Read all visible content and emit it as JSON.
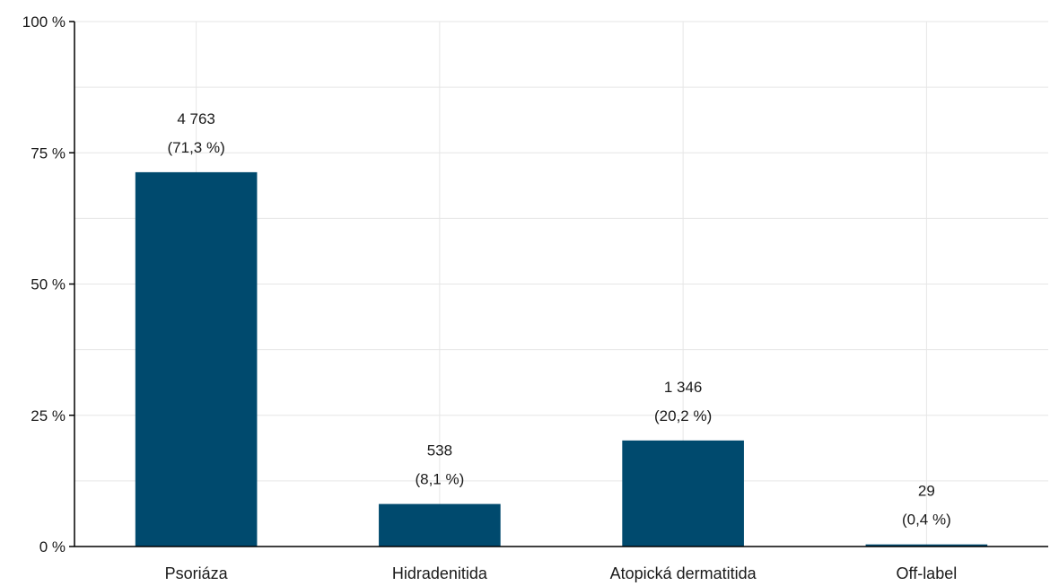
{
  "chart_data": {
    "type": "bar",
    "categories": [
      "Psoriáza",
      "Hidradenitida",
      "Atopická dermatitida",
      "Off-label"
    ],
    "values": [
      71.3,
      8.1,
      20.2,
      0.4
    ],
    "count_labels": [
      "4 763",
      "538",
      "1 346",
      "29"
    ],
    "percent_labels": [
      "(71,3 %)",
      "(8,1 %)",
      "(20,2 %)",
      "(0,4 %)"
    ],
    "ylim": [
      0,
      100
    ],
    "yticks": [
      0,
      25,
      50,
      75,
      100
    ],
    "ytick_labels": [
      "0 %",
      "25 %",
      "50 %",
      "75 %",
      "100 %"
    ],
    "grid": true,
    "legend": "none",
    "title": "",
    "xlabel": "",
    "ylabel": "",
    "bar_color": "#004a6e",
    "grid_color": "#e6e6e6",
    "axis_color": "#000000"
  }
}
